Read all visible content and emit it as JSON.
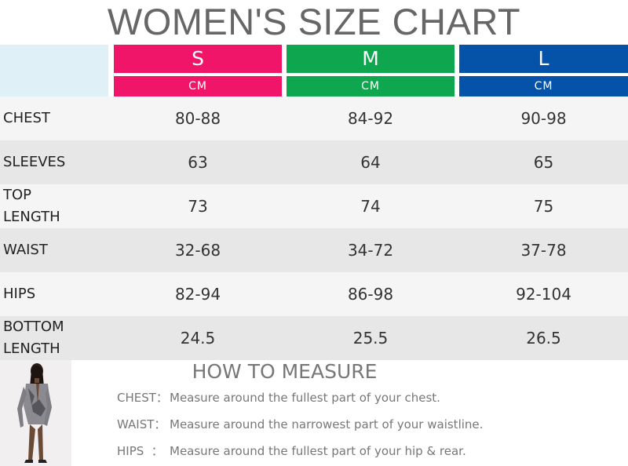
{
  "title": "WOMEN'S SIZE CHART",
  "colors": {
    "S": "#f01569",
    "M": "#0ea64e",
    "L": "#0553a8",
    "corner": "#dff0f7",
    "row_light": "#f5f5f5",
    "row_dark": "#e7e7e7"
  },
  "columns": [
    {
      "size": "S",
      "unit": "CM"
    },
    {
      "size": "M",
      "unit": "CM"
    },
    {
      "size": "L",
      "unit": "CM"
    }
  ],
  "rows": [
    {
      "label": "CHEST",
      "values": [
        "80-88",
        "84-92",
        "90-98"
      ]
    },
    {
      "label": "SLEEVES",
      "values": [
        "63",
        "64",
        "65"
      ]
    },
    {
      "label": "TOP\nLENGTH",
      "values": [
        "73",
        "74",
        "75"
      ]
    },
    {
      "label": "WAIST",
      "values": [
        "32-68",
        "34-72",
        "37-78"
      ]
    },
    {
      "label": "HIPS",
      "values": [
        "82-94",
        "86-98",
        "92-104"
      ]
    },
    {
      "label": "BOTTOM\nLENGTH",
      "values": [
        "24.5",
        "25.5",
        "26.5"
      ]
    }
  ],
  "how_to": {
    "title": "HOW TO MEASURE",
    "items": [
      {
        "key": "CHEST：",
        "text": "Measure around the fullest part of your chest."
      },
      {
        "key": "WAIST：",
        "text": "Measure around the narrowest part of your waistline."
      },
      {
        "key": "HIPS  ：",
        "text": "Measure around the fullest part of your hip & rear."
      }
    ]
  }
}
